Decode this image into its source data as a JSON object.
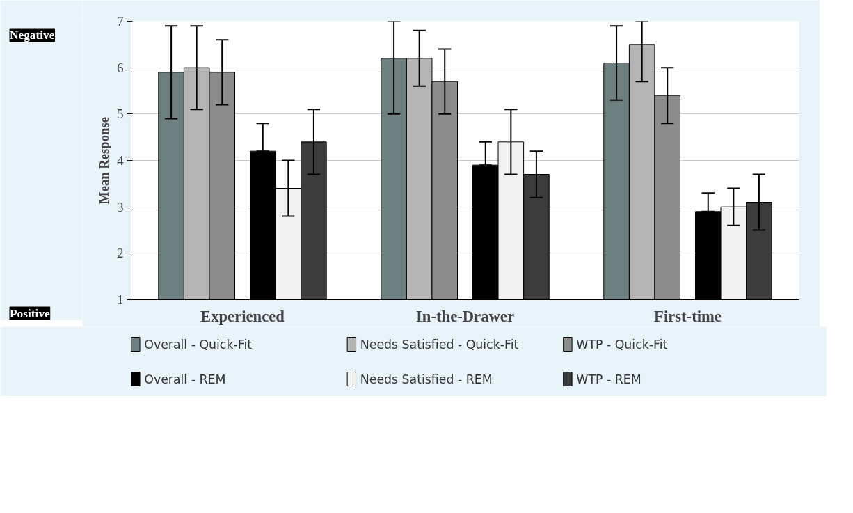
{
  "chart_data": {
    "type": "bar",
    "ylabel": "Mean Response",
    "categories": [
      "Experienced",
      "In-the-Drawer",
      "First-time"
    ],
    "ylim": [
      1,
      7
    ],
    "yticks": [
      1,
      2,
      3,
      4,
      5,
      6,
      7
    ],
    "grid": "y",
    "legend": "bottom",
    "series": [
      {
        "name": "Overall - Quick-Fit",
        "color": "#6e7f80",
        "values": [
          5.9,
          6.2,
          6.1
        ],
        "errors": [
          [
            4.9,
            6.9
          ],
          [
            5.0,
            7.0
          ],
          [
            5.3,
            6.9
          ]
        ]
      },
      {
        "name": "Needs Satisfied - Quick-Fit",
        "color": "#b4b4b4",
        "values": [
          6.0,
          6.2,
          6.5
        ],
        "errors": [
          [
            5.1,
            6.9
          ],
          [
            5.6,
            6.8
          ],
          [
            5.7,
            7.0
          ]
        ]
      },
      {
        "name": "WTP - Quick-Fit",
        "color": "#8c8c8c",
        "values": [
          5.9,
          5.7,
          5.4
        ],
        "errors": [
          [
            5.2,
            6.6
          ],
          [
            5.0,
            6.4
          ],
          [
            4.8,
            6.0
          ]
        ]
      },
      {
        "name": "Overall - REM",
        "color": "#000000",
        "values": [
          4.2,
          3.9,
          2.9
        ],
        "errors": [
          [
            4.2,
            4.8
          ],
          [
            3.9,
            4.4
          ],
          [
            2.9,
            3.3
          ]
        ]
      },
      {
        "name": "Needs Satisfied - REM",
        "color": "#f2f2f2",
        "values": [
          3.4,
          4.4,
          3.0
        ],
        "errors": [
          [
            2.8,
            4.0
          ],
          [
            3.7,
            5.1
          ],
          [
            2.6,
            3.4
          ]
        ]
      },
      {
        "name": "WTP - REM",
        "color": "#3c3c3c",
        "values": [
          4.4,
          3.7,
          3.1
        ],
        "errors": [
          [
            3.7,
            5.1
          ],
          [
            3.2,
            4.2
          ],
          [
            2.5,
            3.7
          ]
        ]
      }
    ],
    "annotations": [
      "Negative",
      "Positive"
    ]
  }
}
